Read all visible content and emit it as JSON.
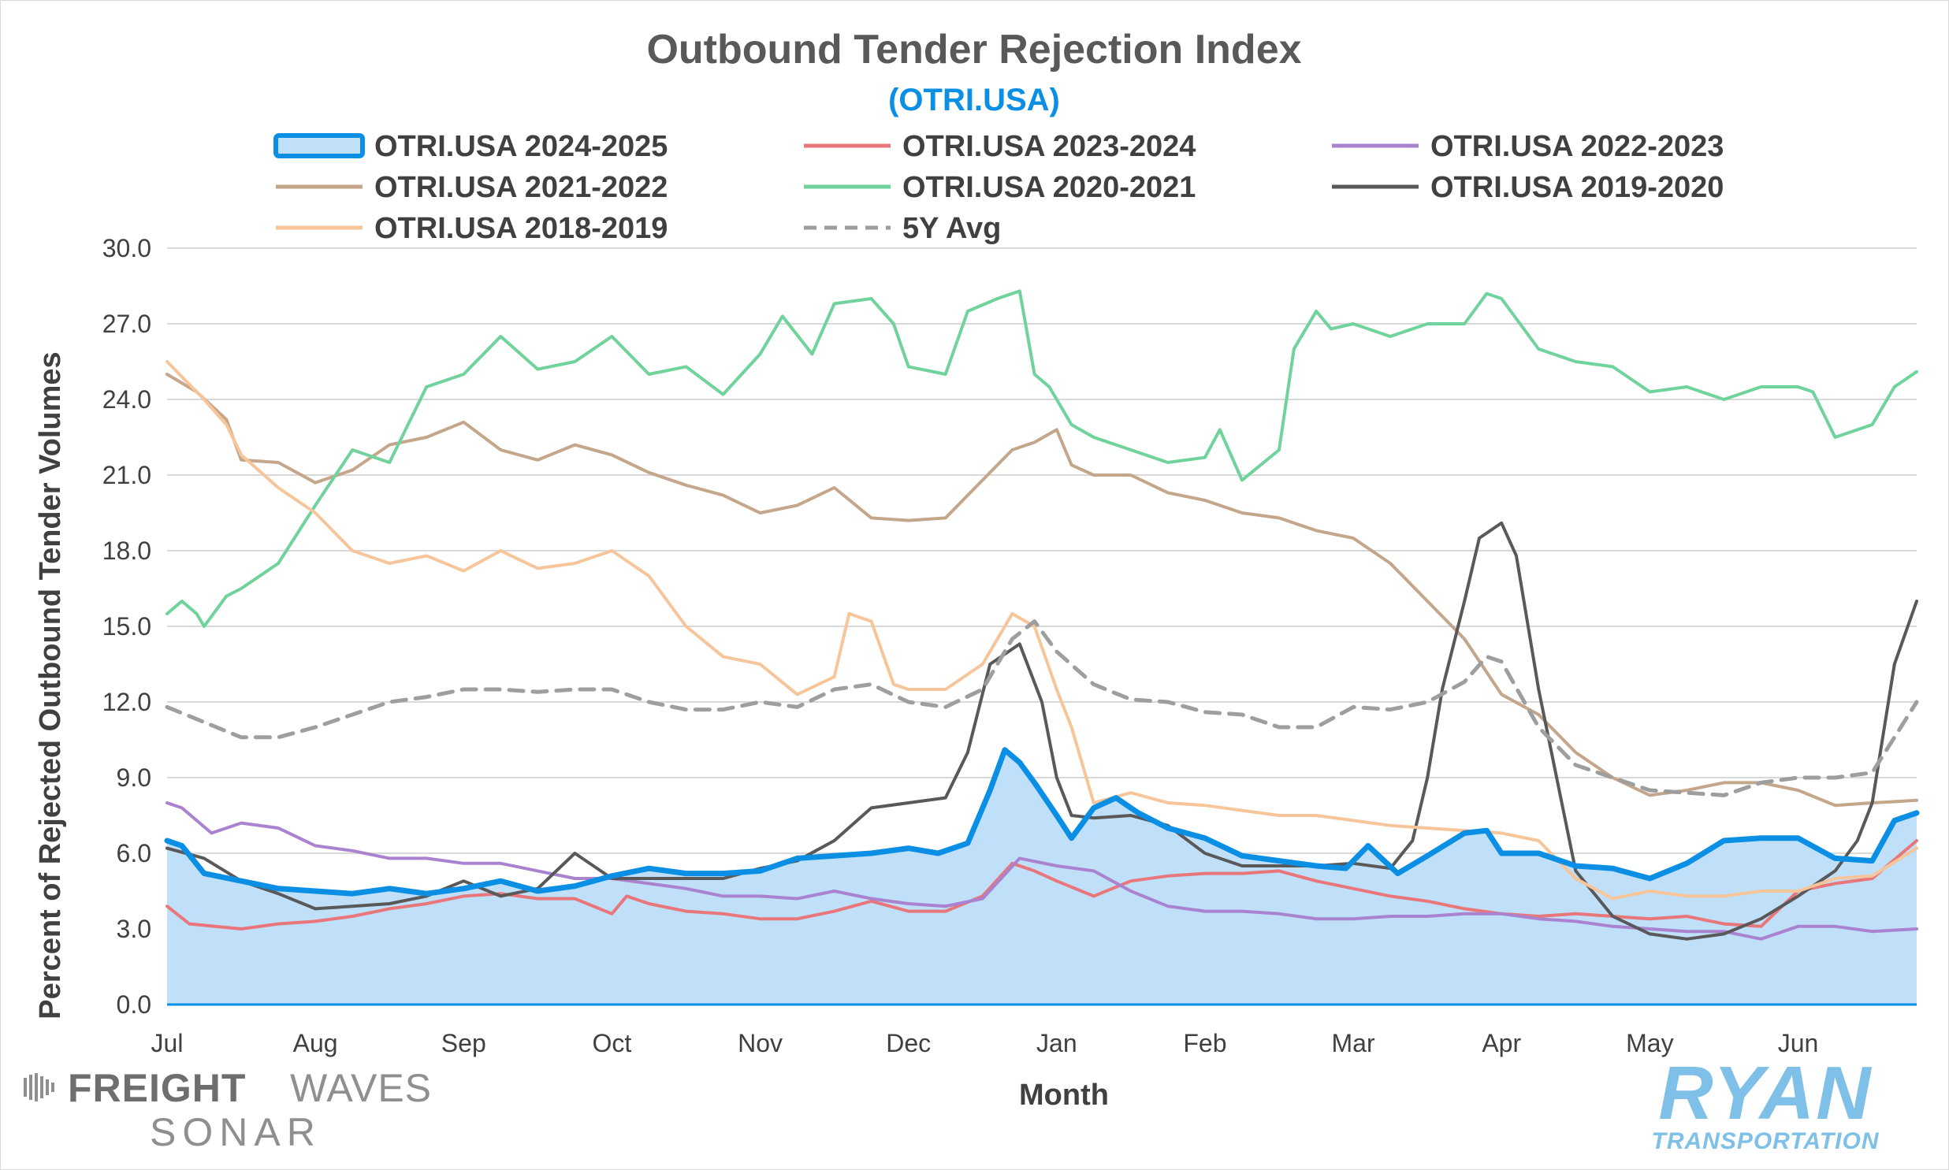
{
  "chart_data": {
    "type": "line",
    "title": "Outbound Tender Rejection Index",
    "subtitle": "(OTRI.USA)",
    "xlabel": "Month",
    "ylabel": "Percent of Rejected Outbound Tender Volumes",
    "ylim": [
      0,
      30
    ],
    "yticks": [
      "0.0",
      "3.0",
      "6.0",
      "9.0",
      "12.0",
      "15.0",
      "18.0",
      "21.0",
      "24.0",
      "27.0",
      "30.0"
    ],
    "xlim": [
      0,
      11.8
    ],
    "categories": [
      "Jul",
      "Aug",
      "Sep",
      "Oct",
      "Nov",
      "Dec",
      "Jan",
      "Feb",
      "Mar",
      "Apr",
      "May",
      "Jun"
    ],
    "grid": "horizontal",
    "legend_position": "top",
    "colors": {
      "title": "#595959",
      "subtitle": "#0b8fe5",
      "grid": "#d9d9d9",
      "area_fill": "#bfe0f8"
    },
    "series": [
      {
        "name": "OTRI.USA 2024-2025",
        "color": "#0b8fe5",
        "style": "area",
        "width": 7,
        "x": [
          0,
          0.1,
          0.25,
          0.5,
          0.75,
          1.0,
          1.25,
          1.5,
          1.75,
          2.0,
          2.25,
          2.5,
          2.75,
          3.0,
          3.25,
          3.5,
          3.75,
          4.0,
          4.25,
          4.5,
          4.75,
          5.0,
          5.2,
          5.4,
          5.55,
          5.65,
          5.75,
          5.85,
          6.0,
          6.1,
          6.25,
          6.4,
          6.55,
          6.75,
          7.0,
          7.25,
          7.5,
          7.75,
          7.95,
          8.1,
          8.3,
          8.5,
          8.75,
          8.9,
          9.0,
          9.25,
          9.5,
          9.75,
          10.0,
          10.25,
          10.5,
          10.75,
          11.0,
          11.25,
          11.5,
          11.65,
          11.8
        ],
        "y": [
          6.5,
          6.3,
          5.2,
          4.9,
          4.6,
          4.5,
          4.4,
          4.6,
          4.4,
          4.6,
          4.9,
          4.5,
          4.7,
          5.1,
          5.4,
          5.2,
          5.2,
          5.3,
          5.8,
          5.9,
          6.0,
          6.2,
          6.0,
          6.4,
          8.5,
          10.1,
          9.6,
          8.8,
          7.5,
          6.6,
          7.8,
          8.2,
          7.6,
          7.0,
          6.6,
          5.9,
          5.7,
          5.5,
          5.4,
          6.3,
          5.2,
          5.9,
          6.8,
          6.9,
          6.0,
          6.0,
          5.5,
          5.4,
          5.0,
          5.6,
          6.5,
          6.6,
          6.6,
          5.8,
          5.7,
          7.3,
          7.6
        ]
      },
      {
        "name": "OTRI.USA 2023-2024",
        "color": "#e8767a",
        "style": "line",
        "width": 4,
        "x": [
          0,
          0.15,
          0.5,
          0.75,
          1.0,
          1.25,
          1.5,
          1.75,
          2.0,
          2.25,
          2.5,
          2.75,
          3.0,
          3.1,
          3.25,
          3.5,
          3.75,
          4.0,
          4.25,
          4.5,
          4.75,
          5.0,
          5.25,
          5.5,
          5.7,
          5.85,
          6.0,
          6.25,
          6.5,
          6.75,
          7.0,
          7.25,
          7.5,
          7.75,
          8.0,
          8.25,
          8.5,
          8.75,
          9.0,
          9.25,
          9.5,
          9.75,
          10.0,
          10.25,
          10.5,
          10.75,
          11.0,
          11.25,
          11.5,
          11.8
        ],
        "y": [
          3.9,
          3.2,
          3.0,
          3.2,
          3.3,
          3.5,
          3.8,
          4.0,
          4.3,
          4.4,
          4.2,
          4.2,
          3.6,
          4.3,
          4.0,
          3.7,
          3.6,
          3.4,
          3.4,
          3.7,
          4.1,
          3.7,
          3.7,
          4.3,
          5.6,
          5.3,
          4.9,
          4.3,
          4.9,
          5.1,
          5.2,
          5.2,
          5.3,
          4.9,
          4.6,
          4.3,
          4.1,
          3.8,
          3.6,
          3.5,
          3.6,
          3.5,
          3.4,
          3.5,
          3.2,
          3.1,
          4.5,
          4.8,
          5.0,
          6.5
        ]
      },
      {
        "name": "OTRI.USA 2022-2023",
        "color": "#a983cf",
        "style": "line",
        "width": 4,
        "x": [
          0,
          0.1,
          0.3,
          0.5,
          0.75,
          1.0,
          1.25,
          1.5,
          1.75,
          2.0,
          2.25,
          2.5,
          2.75,
          3.0,
          3.25,
          3.5,
          3.75,
          4.0,
          4.25,
          4.5,
          4.75,
          5.0,
          5.25,
          5.5,
          5.75,
          6.0,
          6.25,
          6.5,
          6.75,
          7.0,
          7.25,
          7.5,
          7.75,
          8.0,
          8.25,
          8.5,
          8.75,
          9.0,
          9.25,
          9.5,
          9.75,
          10.0,
          10.25,
          10.5,
          10.75,
          11.0,
          11.25,
          11.5,
          11.8
        ],
        "y": [
          8.0,
          7.8,
          6.8,
          7.2,
          7.0,
          6.3,
          6.1,
          5.8,
          5.8,
          5.6,
          5.6,
          5.3,
          5.0,
          5.0,
          4.8,
          4.6,
          4.3,
          4.3,
          4.2,
          4.5,
          4.2,
          4.0,
          3.9,
          4.2,
          5.8,
          5.5,
          5.3,
          4.5,
          3.9,
          3.7,
          3.7,
          3.6,
          3.4,
          3.4,
          3.5,
          3.5,
          3.6,
          3.6,
          3.4,
          3.3,
          3.1,
          3.0,
          2.9,
          2.9,
          2.6,
          3.1,
          3.1,
          2.9,
          3.0
        ]
      },
      {
        "name": "OTRI.USA 2021-2022",
        "color": "#c4a68a",
        "style": "line",
        "width": 4,
        "x": [
          0,
          0.2,
          0.4,
          0.5,
          0.75,
          1.0,
          1.25,
          1.5,
          1.75,
          2.0,
          2.25,
          2.5,
          2.75,
          3.0,
          3.25,
          3.5,
          3.75,
          4.0,
          4.25,
          4.5,
          4.75,
          5.0,
          5.25,
          5.5,
          5.7,
          5.85,
          6.0,
          6.1,
          6.25,
          6.5,
          6.75,
          7.0,
          7.25,
          7.5,
          7.75,
          8.0,
          8.25,
          8.5,
          8.75,
          9.0,
          9.25,
          9.5,
          9.75,
          10.0,
          10.25,
          10.5,
          10.75,
          11.0,
          11.25,
          11.5,
          11.8
        ],
        "y": [
          25.0,
          24.3,
          23.2,
          21.6,
          21.5,
          20.7,
          21.2,
          22.2,
          22.5,
          23.1,
          22.0,
          21.6,
          22.2,
          21.8,
          21.1,
          20.6,
          20.2,
          19.5,
          19.8,
          20.5,
          19.3,
          19.2,
          19.3,
          20.8,
          22.0,
          22.3,
          22.8,
          21.4,
          21.0,
          21.0,
          20.3,
          20.0,
          19.5,
          19.3,
          18.8,
          18.5,
          17.5,
          16.0,
          14.5,
          12.3,
          11.5,
          10.0,
          9.0,
          8.3,
          8.5,
          8.8,
          8.8,
          8.5,
          7.9,
          8.0,
          8.1
        ]
      },
      {
        "name": "OTRI.USA 2020-2021",
        "color": "#6fd39b",
        "style": "line",
        "width": 4,
        "x": [
          0,
          0.1,
          0.2,
          0.25,
          0.4,
          0.5,
          0.75,
          1.0,
          1.25,
          1.5,
          1.75,
          2.0,
          2.25,
          2.5,
          2.75,
          3.0,
          3.25,
          3.5,
          3.75,
          4.0,
          4.15,
          4.35,
          4.5,
          4.75,
          4.9,
          5.0,
          5.25,
          5.4,
          5.6,
          5.75,
          5.85,
          5.95,
          6.1,
          6.25,
          6.5,
          6.75,
          7.0,
          7.1,
          7.25,
          7.5,
          7.6,
          7.75,
          7.85,
          8.0,
          8.25,
          8.5,
          8.75,
          8.9,
          9.0,
          9.25,
          9.5,
          9.75,
          10.0,
          10.25,
          10.5,
          10.75,
          11.0,
          11.1,
          11.25,
          11.5,
          11.65,
          11.8
        ],
        "y": [
          15.5,
          16.0,
          15.5,
          15.0,
          16.2,
          16.5,
          17.5,
          19.8,
          22.0,
          21.5,
          24.5,
          25.0,
          26.5,
          25.2,
          25.5,
          26.5,
          25.0,
          25.3,
          24.2,
          25.8,
          27.3,
          25.8,
          27.8,
          28.0,
          27.0,
          25.3,
          25.0,
          27.5,
          28.0,
          28.3,
          25.0,
          24.5,
          23.0,
          22.5,
          22.0,
          21.5,
          21.7,
          22.8,
          20.8,
          22.0,
          26.0,
          27.5,
          26.8,
          27.0,
          26.5,
          27.0,
          27.0,
          28.2,
          28.0,
          26.0,
          25.5,
          25.3,
          24.3,
          24.5,
          24.0,
          24.5,
          24.5,
          24.3,
          22.5,
          23.0,
          24.5,
          25.1
        ]
      },
      {
        "name": "OTRI.USA 2019-2020",
        "color": "#595959",
        "style": "line",
        "width": 4,
        "x": [
          0,
          0.25,
          0.5,
          0.75,
          1.0,
          1.25,
          1.5,
          1.75,
          2.0,
          2.25,
          2.5,
          2.75,
          3.0,
          3.25,
          3.5,
          3.75,
          4.0,
          4.25,
          4.5,
          4.75,
          5.0,
          5.25,
          5.4,
          5.55,
          5.75,
          5.9,
          6.0,
          6.1,
          6.25,
          6.5,
          6.75,
          7.0,
          7.25,
          7.5,
          7.75,
          8.0,
          8.25,
          8.4,
          8.5,
          8.6,
          8.75,
          8.85,
          9.0,
          9.1,
          9.25,
          9.5,
          9.75,
          10.0,
          10.25,
          10.5,
          10.75,
          11.0,
          11.25,
          11.4,
          11.5,
          11.65,
          11.8
        ],
        "y": [
          6.2,
          5.8,
          4.9,
          4.4,
          3.8,
          3.9,
          4.0,
          4.3,
          4.9,
          4.3,
          4.6,
          6.0,
          5.0,
          5.0,
          5.0,
          5.0,
          5.4,
          5.7,
          6.5,
          7.8,
          8.0,
          8.2,
          10.0,
          13.5,
          14.3,
          12.0,
          9.0,
          7.5,
          7.4,
          7.5,
          7.1,
          6.0,
          5.5,
          5.5,
          5.5,
          5.6,
          5.4,
          6.5,
          9.0,
          12.5,
          16.0,
          18.5,
          19.1,
          17.8,
          12.5,
          5.3,
          3.5,
          2.8,
          2.6,
          2.8,
          3.4,
          4.3,
          5.3,
          6.5,
          8.0,
          13.5,
          16.0
        ]
      },
      {
        "name": "OTRI.USA 2018-2019",
        "color": "#f7c59a",
        "style": "line",
        "width": 4,
        "x": [
          0,
          0.25,
          0.4,
          0.5,
          0.75,
          1.0,
          1.25,
          1.5,
          1.75,
          2.0,
          2.25,
          2.5,
          2.75,
          3.0,
          3.25,
          3.5,
          3.75,
          4.0,
          4.25,
          4.5,
          4.6,
          4.75,
          4.9,
          5.0,
          5.25,
          5.5,
          5.7,
          5.85,
          6.0,
          6.1,
          6.25,
          6.5,
          6.75,
          7.0,
          7.25,
          7.5,
          7.75,
          8.0,
          8.25,
          8.5,
          8.75,
          9.0,
          9.25,
          9.5,
          9.75,
          10.0,
          10.25,
          10.5,
          10.75,
          11.0,
          11.25,
          11.5,
          11.8
        ],
        "y": [
          25.5,
          24.0,
          23.0,
          21.8,
          20.5,
          19.5,
          18.0,
          17.5,
          17.8,
          17.2,
          18.0,
          17.3,
          17.5,
          18.0,
          17.0,
          15.0,
          13.8,
          13.5,
          12.3,
          13.0,
          15.5,
          15.2,
          12.7,
          12.5,
          12.5,
          13.5,
          15.5,
          15.0,
          12.5,
          11.0,
          8.0,
          8.4,
          8.0,
          7.9,
          7.7,
          7.5,
          7.5,
          7.3,
          7.1,
          7.0,
          6.9,
          6.8,
          6.5,
          5.0,
          4.2,
          4.5,
          4.3,
          4.3,
          4.5,
          4.5,
          5.0,
          5.1,
          6.2
        ]
      },
      {
        "name": "5Y Avg",
        "color": "#9e9e9e",
        "style": "dashed",
        "width": 5,
        "x": [
          0,
          0.25,
          0.5,
          0.75,
          1.0,
          1.25,
          1.5,
          1.75,
          2.0,
          2.25,
          2.5,
          2.75,
          3.0,
          3.25,
          3.5,
          3.75,
          4.0,
          4.25,
          4.5,
          4.75,
          5.0,
          5.25,
          5.5,
          5.7,
          5.85,
          6.0,
          6.25,
          6.5,
          6.75,
          7.0,
          7.25,
          7.5,
          7.75,
          8.0,
          8.25,
          8.5,
          8.75,
          8.9,
          9.0,
          9.25,
          9.5,
          9.75,
          10.0,
          10.25,
          10.5,
          10.75,
          11.0,
          11.25,
          11.5,
          11.8
        ],
        "y": [
          11.8,
          11.2,
          10.6,
          10.6,
          11.0,
          11.5,
          12.0,
          12.2,
          12.5,
          12.5,
          12.4,
          12.5,
          12.5,
          12.0,
          11.7,
          11.7,
          12.0,
          11.8,
          12.5,
          12.7,
          12.0,
          11.8,
          12.5,
          14.5,
          15.2,
          14.0,
          12.7,
          12.1,
          12.0,
          11.6,
          11.5,
          11.0,
          11.0,
          11.8,
          11.7,
          12.0,
          12.8,
          13.8,
          13.6,
          11.0,
          9.5,
          9.0,
          8.5,
          8.4,
          8.3,
          8.8,
          9.0,
          9.0,
          9.2,
          12.0
        ]
      }
    ]
  },
  "brand": {
    "freightwaves_word1": "FREIGHT",
    "freightwaves_word2": "WAVES",
    "freightwaves_word3": "SONAR",
    "ryan_word": "RYAN",
    "ryan_sub": "TRANSPORTATION"
  }
}
